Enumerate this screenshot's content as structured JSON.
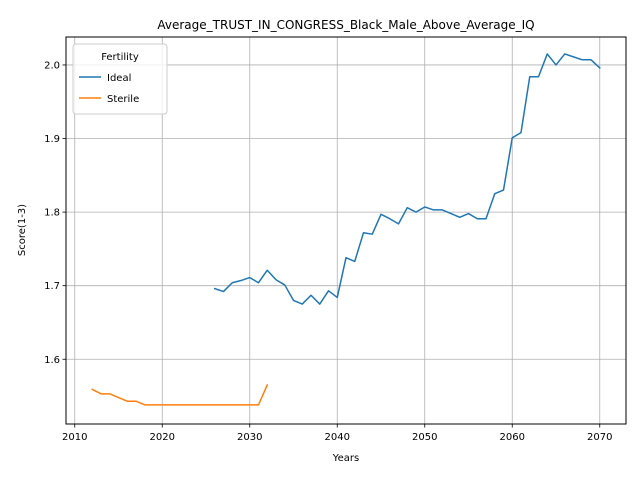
{
  "chart_data": {
    "type": "line",
    "title": "Average_TRUST_IN_CONGRESS_Black_Male_Above_Average_IQ",
    "xlabel": "Years",
    "ylabel": "Score(1-3)",
    "xlim": [
      2009,
      2073
    ],
    "ylim": [
      1.512,
      2.038
    ],
    "xticks": [
      2010,
      2020,
      2030,
      2040,
      2050,
      2060,
      2070
    ],
    "yticks": [
      1.6,
      1.7,
      1.8,
      1.9,
      2.0
    ],
    "yticks_label": [
      "1.6",
      "1.7",
      "1.8",
      "1.9",
      "2.0"
    ],
    "grid": true,
    "legend": {
      "title": "Fertility",
      "placement": "top-left"
    },
    "series": [
      {
        "name": "Ideal",
        "color": "#1f77b4",
        "x": [
          2026,
          2027,
          2028,
          2029,
          2030,
          2031,
          2032,
          2033,
          2034,
          2035,
          2036,
          2037,
          2038,
          2039,
          2040,
          2041,
          2042,
          2043,
          2044,
          2045,
          2046,
          2047,
          2048,
          2049,
          2050,
          2051,
          2052,
          2053,
          2054,
          2055,
          2056,
          2057,
          2058,
          2059,
          2060,
          2061,
          2062,
          2063,
          2064,
          2065,
          2066,
          2067,
          2068,
          2069,
          2070
        ],
        "values": [
          1.696,
          1.692,
          1.704,
          1.707,
          1.711,
          1.704,
          1.721,
          1.708,
          1.701,
          1.68,
          1.675,
          1.687,
          1.675,
          1.693,
          1.684,
          1.738,
          1.733,
          1.772,
          1.77,
          1.797,
          1.791,
          1.784,
          1.806,
          1.8,
          1.807,
          1.803,
          1.803,
          1.798,
          1.793,
          1.798,
          1.791,
          1.791,
          1.825,
          1.83,
          1.901,
          1.908,
          1.984,
          1.984,
          2.015,
          2.0,
          2.015,
          2.011,
          2.007,
          2.007,
          1.996
        ]
      },
      {
        "name": "Sterile",
        "color": "#ff7f0e",
        "x": [
          2012,
          2013,
          2014,
          2015,
          2016,
          2017,
          2018,
          2019,
          2020,
          2021,
          2022,
          2023,
          2024,
          2025,
          2026,
          2027,
          2028,
          2029,
          2030,
          2031,
          2032
        ],
        "values": [
          1.559,
          1.553,
          1.553,
          1.548,
          1.543,
          1.543,
          1.538,
          1.538,
          1.538,
          1.538,
          1.538,
          1.538,
          1.538,
          1.538,
          1.538,
          1.538,
          1.538,
          1.538,
          1.538,
          1.538,
          1.565
        ]
      }
    ]
  }
}
